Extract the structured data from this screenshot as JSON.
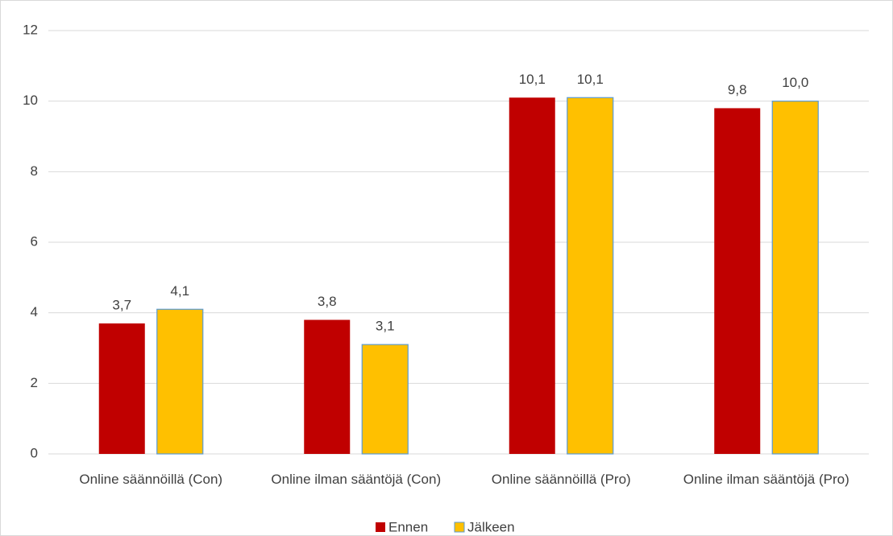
{
  "chart_data": {
    "type": "bar",
    "categories": [
      "Online säännöillä (Con)",
      "Online ilman sääntöjä (Con)",
      "Online säännöillä (Pro)",
      "Online ilman sääntöjä (Pro)"
    ],
    "series": [
      {
        "name": "Ennen",
        "color": "#c00000",
        "values": [
          3.7,
          3.8,
          10.1,
          9.8
        ],
        "value_labels": [
          "3,7",
          "3,8",
          "10,1",
          "9,8"
        ]
      },
      {
        "name": "Jälkeen",
        "color": "#ffc000",
        "edge_color": "#5b9bd5",
        "values": [
          4.1,
          3.1,
          10.1,
          10.0
        ],
        "value_labels": [
          "4,1",
          "3,1",
          "10,1",
          "10,0"
        ]
      }
    ],
    "ylim": [
      0,
      12
    ],
    "yticks": [
      0,
      2,
      4,
      6,
      8,
      10,
      12
    ],
    "grid": true,
    "legend": "bottom"
  }
}
